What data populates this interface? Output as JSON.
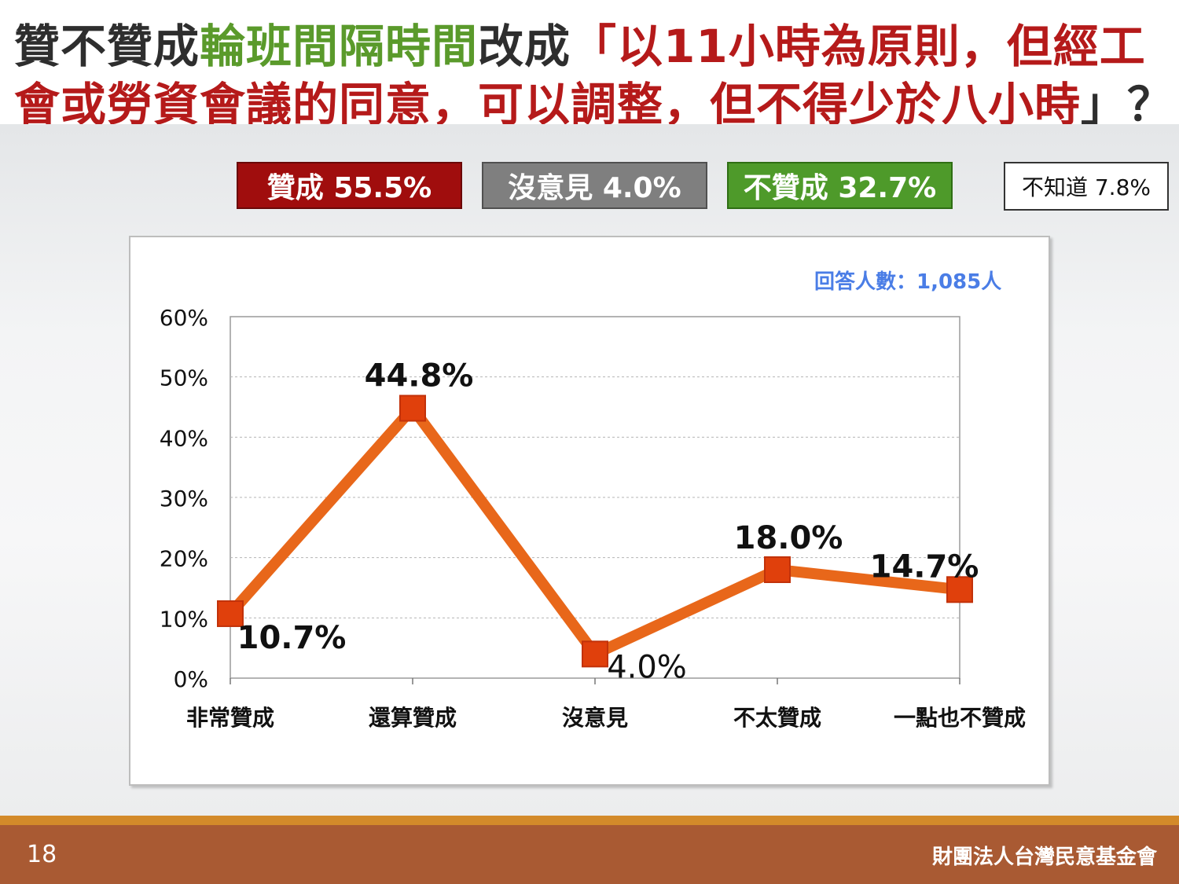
{
  "title": {
    "line1": [
      {
        "text": "贊不贊成",
        "color": "dark"
      },
      {
        "text": "輪班間隔時間",
        "color": "green"
      },
      {
        "text": "改成",
        "color": "dark"
      },
      {
        "text": "「以11小時為原則，但經工",
        "color": "red"
      }
    ],
    "line2": [
      {
        "text": "會或勞資會議的同意，可以調整，但不得少於八小時",
        "color": "red"
      },
      {
        "text": "」？",
        "color": "dark"
      }
    ]
  },
  "summary": {
    "agree": "贊成 55.5%",
    "neutral": "沒意見 4.0%",
    "disagree": "不贊成 32.7%",
    "unknown": "不知道 7.8%"
  },
  "respondents": "回答人數：1,085人",
  "colors": {
    "line": "#e8671a",
    "marker": "#e0400c",
    "agree": "#a00d0d",
    "neutral": "#7f7f7f",
    "disagree": "#4e9a2a",
    "respondents": "#4a7de6"
  },
  "chart_data": {
    "type": "line",
    "categories": [
      "非常贊成",
      "還算贊成",
      "沒意見",
      "不太贊成",
      "一點也不贊成"
    ],
    "values": [
      10.7,
      44.8,
      4.0,
      18.0,
      14.7
    ],
    "value_labels": [
      "10.7%",
      "44.8%",
      "4.0%",
      "18.0%",
      "14.7%"
    ],
    "ylim": [
      0,
      60
    ],
    "yticks": [
      0,
      10,
      20,
      30,
      40,
      50,
      60
    ],
    "ytick_labels": [
      "0%",
      "10%",
      "20%",
      "30%",
      "40%",
      "50%",
      "60%"
    ],
    "grid": true,
    "legend": "none"
  },
  "footer": {
    "page_number": "18",
    "organization": "財團法人台灣民意基金會"
  }
}
